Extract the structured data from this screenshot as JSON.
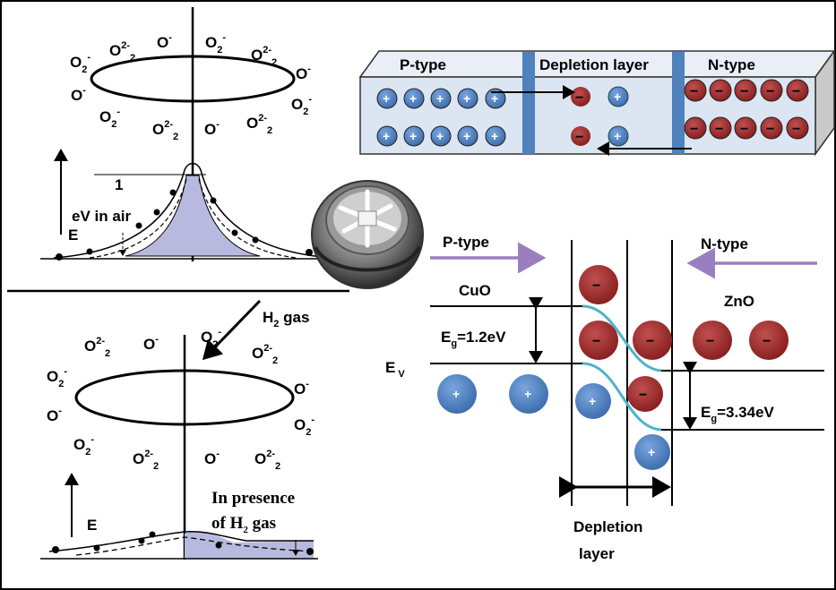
{
  "ion": {
    "o2": "O",
    "o2_sub": "2",
    "o2_sup": "-",
    "o_single": "O",
    "o_single_sup": "-",
    "o22_sub": "2",
    "o22_sup": "2-",
    "o22_sub2": "2"
  },
  "top_left": {
    "label_eV": "eV in air",
    "label_E": "E",
    "label_1": "1"
  },
  "bottom_left": {
    "h2_prefix": "H",
    "h2_sub": "2",
    "h2_suffix": " gas",
    "label_E": "E",
    "presence_line1": "In presence",
    "presence_line2_prefix": "of  H",
    "presence_sub": "2",
    "presence_line2_suffix": " gas"
  },
  "junction_block": {
    "p_type": "P-type",
    "depletion": "Depletion layer",
    "n_type": "N-type",
    "plus": "+",
    "minus": "−"
  },
  "band_diagram": {
    "p_type": "P-type",
    "n_type": "N-type",
    "cuo": "CuO",
    "zno": "ZnO",
    "eg_left_prefix": "E",
    "eg_left_sub": "g",
    "eg_left_value": "=1.2eV",
    "ev_prefix": "E",
    "ev_sub": "V",
    "eg_right_prefix": "E",
    "eg_right_sub": "g",
    "eg_right_value": "=3.34eV",
    "depletion_line1": "Depletion",
    "depletion_line2": "layer"
  },
  "colors": {
    "hole": "#4a7fc1",
    "electron": "#9b2a2a",
    "arrow_purple": "#9a7fc0",
    "curve_teal": "#4fb3c8",
    "block_face": "#dce6f2",
    "block_divider": "#4f81bd",
    "shade": "#b7b9de"
  }
}
